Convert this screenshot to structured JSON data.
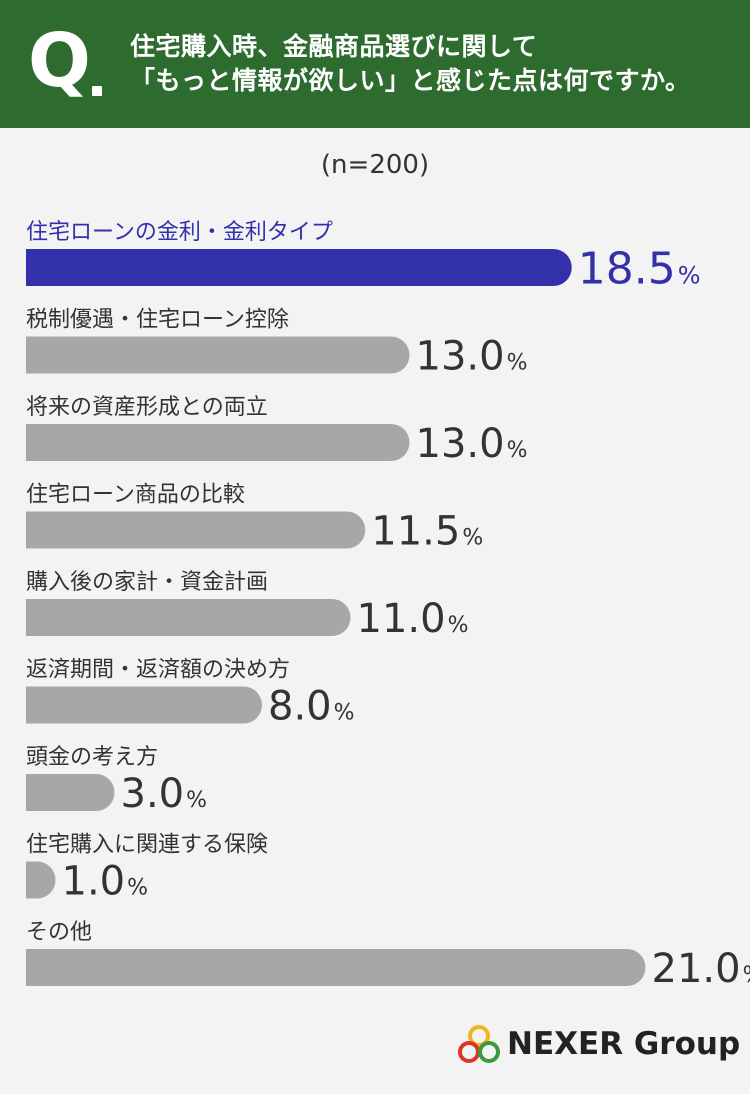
{
  "question": {
    "mark": "Q",
    "line1": "住宅購入時、金融商品選びに関して",
    "line2": "「もっと情報が欲しい」と感じた点は何ですか。"
  },
  "sample_label": "(n=200)",
  "logo_text": "NEXER Group",
  "colors": {
    "header_bg": "#2e6b2f",
    "highlight_bar": "#3230aa",
    "default_bar": "#a7a7aa",
    "highlight_text": "#3230aa",
    "default_text": "#333333"
  },
  "chart_data": {
    "type": "bar",
    "orientation": "horizontal",
    "unit": "%",
    "categories": [
      "住宅ローンの金利・金利タイプ",
      "税制優遇・住宅ローン控除",
      "将来の資産形成との両立",
      "住宅ローン商品の比較",
      "購入後の家計・資金計画",
      "返済期間・返済額の決め方",
      "頭金の考え方",
      "住宅購入に関連する保険",
      "その他"
    ],
    "values": [
      18.5,
      13.0,
      13.0,
      11.5,
      11.0,
      8.0,
      3.0,
      1.0,
      21.0
    ],
    "value_labels": [
      "18.5",
      "13.0",
      "13.0",
      "11.5",
      "11.0",
      "8.0",
      "3.0",
      "1.0",
      "21.0"
    ],
    "highlight_index": 0,
    "grid": false
  }
}
